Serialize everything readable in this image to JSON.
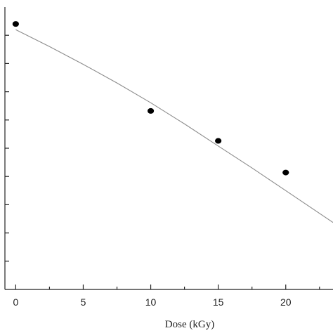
{
  "chart_data": {
    "type": "scatter",
    "title": "",
    "xlabel": "Dose (kGy)",
    "ylabel": "",
    "xlim": [
      -0.8,
      23.5
    ],
    "ylim": [
      0,
      10
    ],
    "grid": false,
    "colors": {
      "axis": "#222222",
      "points": "#000000",
      "fit_line": "#8c8c8c"
    },
    "x_ticks": [
      {
        "value": 0,
        "label": "0"
      },
      {
        "value": 5,
        "label": "5"
      },
      {
        "value": 10,
        "label": "10"
      },
      {
        "value": 15,
        "label": "15"
      },
      {
        "value": 20,
        "label": "20"
      }
    ],
    "x_minor_ticks": [
      2.5,
      7.5,
      12.5,
      17.5,
      22.5
    ],
    "y_ticks": [
      1,
      2,
      3,
      4,
      5,
      6,
      7,
      8,
      9
    ],
    "series": [
      {
        "x": [
          0,
          10,
          15,
          20
        ],
        "y": [
          9.4,
          6.32,
          5.26,
          4.14
        ]
      }
    ],
    "fit_line": {
      "x": [
        0,
        2.5,
        5,
        7.5,
        10,
        12.5,
        15,
        17.5,
        20,
        23.5
      ],
      "y": [
        9.2,
        8.6,
        7.97,
        7.31,
        6.61,
        5.86,
        5.08,
        4.3,
        3.5,
        2.37
      ]
    }
  }
}
